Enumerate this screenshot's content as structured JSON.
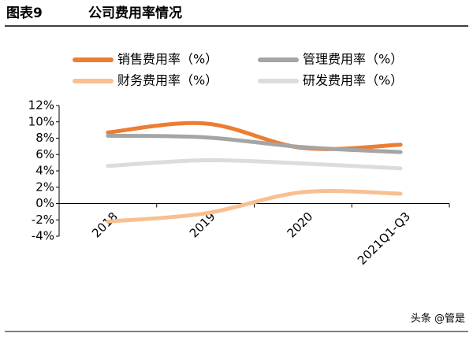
{
  "chart_data": {
    "type": "line",
    "figure_label": "图表9",
    "title": "公司费用率情况",
    "categories": [
      "2018",
      "2019",
      "2020",
      "2021Q1-Q3"
    ],
    "series": [
      {
        "name": "销售费用率（%）",
        "color": "#ed7d31",
        "values": [
          8.7,
          9.8,
          6.8,
          7.2
        ]
      },
      {
        "name": "管理费用率（%）",
        "color": "#a5a5a5",
        "values": [
          8.3,
          8.1,
          6.9,
          6.3
        ]
      },
      {
        "name": "财务费用率（%）",
        "color": "#f8c090",
        "values": [
          -2.2,
          -1.2,
          1.4,
          1.2
        ]
      },
      {
        "name": "研发费用率（%）",
        "color": "#dcdcdc",
        "values": [
          4.6,
          5.3,
          4.9,
          4.3
        ]
      }
    ],
    "ylim": [
      -4,
      12
    ],
    "yticks": [
      {
        "value": -4,
        "label": "-4%"
      },
      {
        "value": -2,
        "label": "-2%"
      },
      {
        "value": 0,
        "label": "0%"
      },
      {
        "value": 2,
        "label": "2%"
      },
      {
        "value": 4,
        "label": "4%"
      },
      {
        "value": 6,
        "label": "6%"
      },
      {
        "value": 8,
        "label": "8%"
      },
      {
        "value": 10,
        "label": "10%"
      },
      {
        "value": 12,
        "label": "12%"
      }
    ],
    "smooth": true,
    "watermark": "头条 @管是"
  }
}
